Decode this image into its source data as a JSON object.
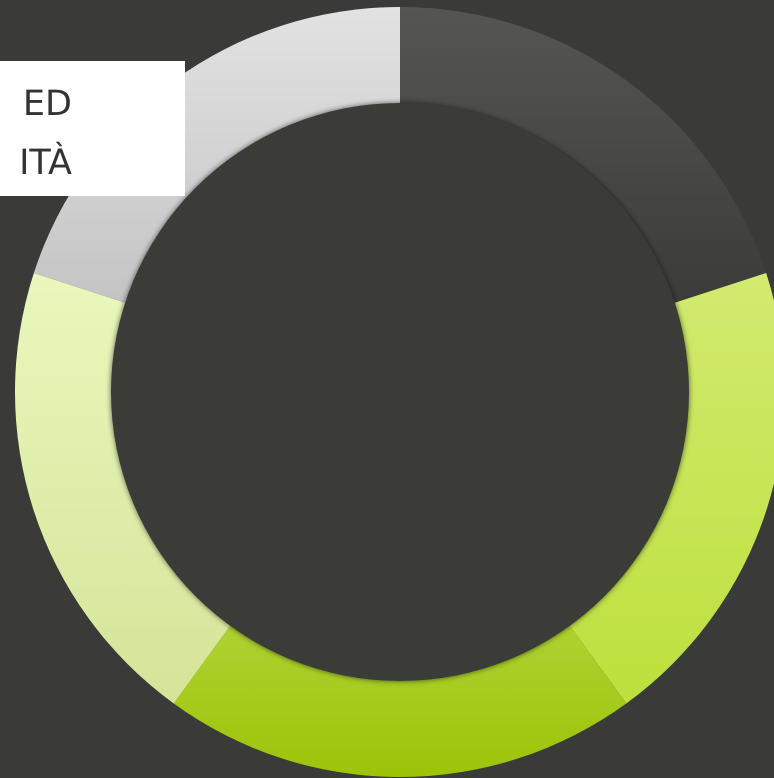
{
  "label": {
    "lines": [
      "ED",
      "ITÀ"
    ]
  }
}
